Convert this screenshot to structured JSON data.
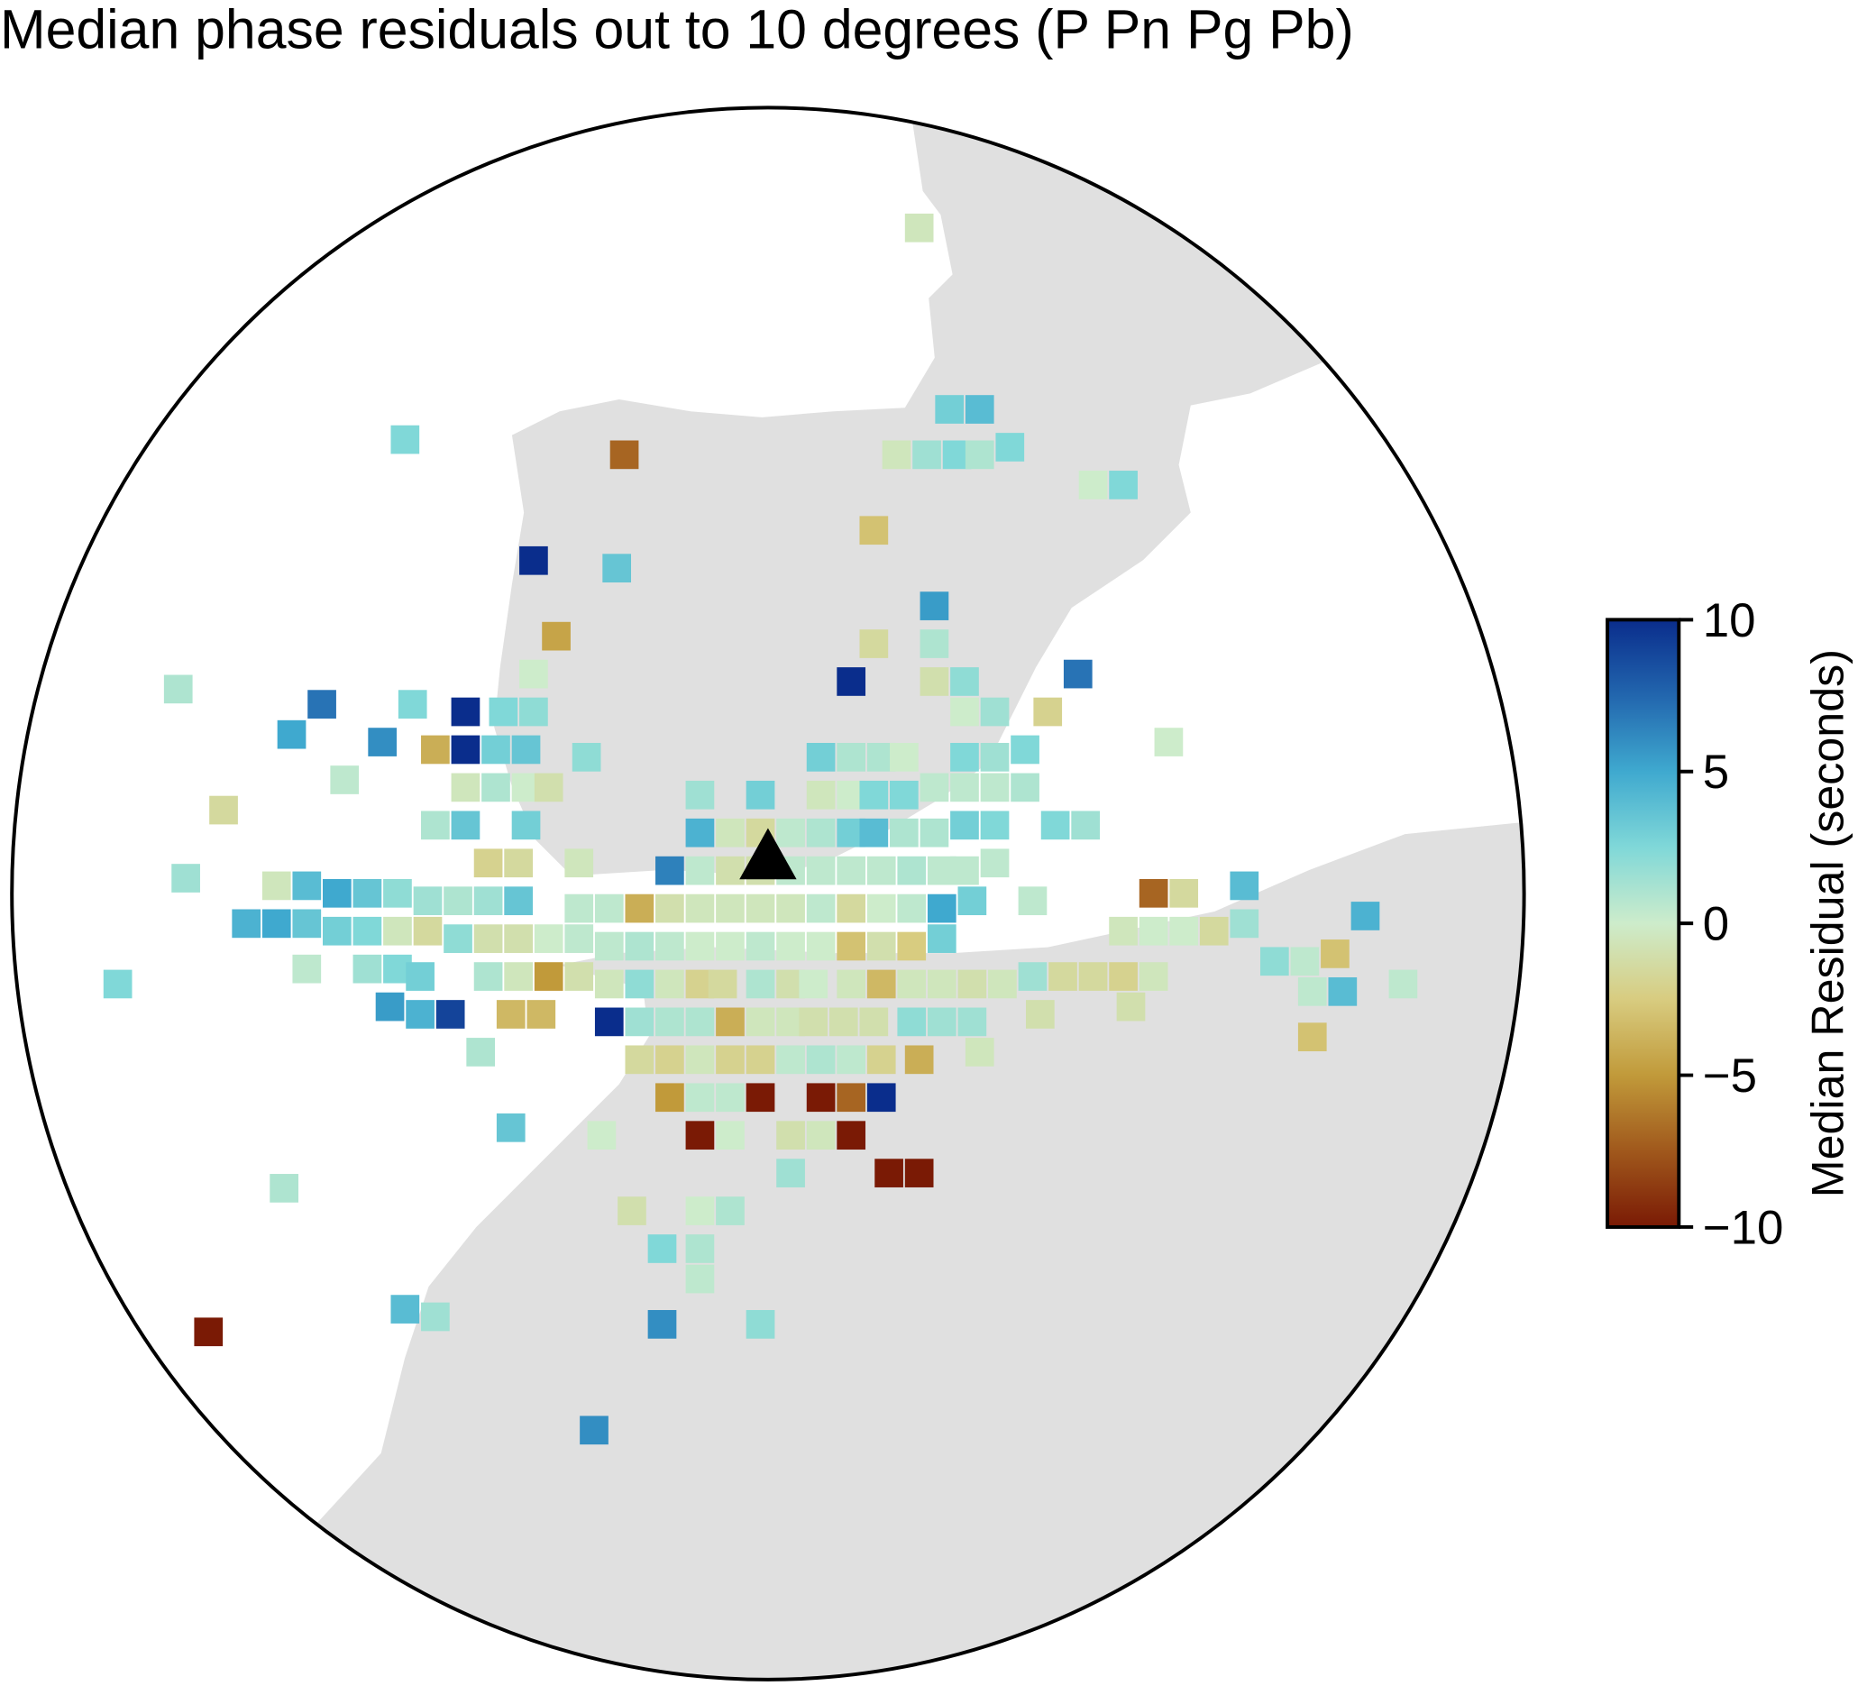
{
  "chart_data": {
    "type": "map",
    "title": "Median phase residuals out to 10 degrees (P Pn Pg Pb)",
    "x": [
      2.0,
      2.4,
      2.8,
      -1.9,
      -4.8,
      1.7,
      2.1,
      2.5,
      2.8,
      3.2,
      4.3,
      4.7,
      1.4,
      -3.1,
      -2.0,
      2.2,
      -2.8,
      1.4,
      2.2,
      4.1,
      1.1,
      -7.8,
      -3.1,
      2.2,
      2.6,
      -5.9,
      -4.7,
      -4.0,
      -3.5,
      -3.1,
      2.6,
      3.0,
      3.7,
      -6.3,
      -5.1,
      -4.4,
      -4.0,
      -3.6,
      -3.2,
      -2.4,
      0.7,
      1.1,
      1.5,
      1.8,
      2.6,
      3.0,
      3.4,
      5.3,
      -5.6,
      -4.0,
      -3.6,
      -3.2,
      -2.9,
      -0.9,
      -0.1,
      0.7,
      1.1,
      1.4,
      1.8,
      2.2,
      2.6,
      3.0,
      3.4,
      -7.2,
      -4.4,
      -4.0,
      -3.2,
      -0.9,
      -0.5,
      -0.1,
      0.3,
      0.7,
      1.1,
      1.4,
      1.8,
      2.2,
      2.6,
      3.0,
      3.8,
      4.2,
      -3.7,
      -3.3,
      -2.5,
      -1.3,
      -0.9,
      -0.5,
      -0.1,
      0.3,
      0.7,
      1.1,
      1.5,
      1.9,
      2.3,
      2.6,
      3.0,
      -7.7,
      -6.5,
      -6.1,
      -5.7,
      -5.3,
      -4.9,
      -4.5,
      -4.1,
      -3.7,
      -3.3,
      -2.5,
      -2.1,
      -1.7,
      -1.3,
      -0.9,
      -0.5,
      -0.1,
      0.3,
      0.7,
      1.1,
      1.5,
      1.9,
      2.3,
      2.7,
      3.5,
      5.1,
      5.5,
      6.3,
      -6.9,
      -6.5,
      -6.1,
      -5.7,
      -5.3,
      -4.9,
      -4.5,
      -4.1,
      -3.7,
      -3.3,
      -2.9,
      -2.5,
      -2.1,
      -1.7,
      -1.3,
      -0.9,
      -0.5,
      -0.1,
      0.3,
      0.7,
      1.1,
      1.5,
      1.9,
      2.3,
      4.7,
      5.1,
      5.5,
      5.9,
      6.3,
      7.9,
      -6.1,
      -5.3,
      -4.9,
      -4.6,
      -3.7,
      -3.3,
      -2.9,
      -2.5,
      -2.1,
      -1.7,
      -1.3,
      -0.9,
      -0.6,
      -0.1,
      0.3,
      0.6,
      1.1,
      1.5,
      1.9,
      2.3,
      2.7,
      3.1,
      3.5,
      3.9,
      4.3,
      4.7,
      5.1,
      6.7,
      7.1,
      7.5,
      -8.6,
      -5.0,
      -4.6,
      -4.2,
      -3.4,
      -3.0,
      -2.1,
      -1.7,
      -1.3,
      -0.9,
      -0.5,
      -0.1,
      0.3,
      0.6,
      1.0,
      1.4,
      1.9,
      2.3,
      2.7,
      3.6,
      4.8,
      7.2,
      7.6,
      8.4,
      -3.8,
      -1.7,
      -1.3,
      -0.9,
      -0.5,
      -0.1,
      0.3,
      0.7,
      1.1,
      1.5,
      2.0,
      2.8,
      7.2,
      -1.3,
      -0.9,
      -0.5,
      -0.1,
      0.7,
      1.1,
      1.5,
      -3.4,
      -2.2,
      -0.9,
      -0.5,
      0.3,
      0.7,
      1.1,
      0.3,
      1.6,
      2.0,
      -6.4,
      -1.8,
      -0.9,
      -0.5,
      -1.4,
      -0.9,
      -0.9,
      -4.8,
      -4.4,
      -1.4,
      -0.1,
      -7.4,
      -2.3
    ],
    "y": [
      8.3,
      5.9,
      5.9,
      5.3,
      5.5,
      5.3,
      5.3,
      5.3,
      5.3,
      5.4,
      4.9,
      4.9,
      4.3,
      3.9,
      3.8,
      3.3,
      2.9,
      2.8,
      2.8,
      2.4,
      2.3,
      2.2,
      2.4,
      2.3,
      2.3,
      2.0,
      2.0,
      1.9,
      1.9,
      1.9,
      1.9,
      1.9,
      1.9,
      1.6,
      1.5,
      1.4,
      1.4,
      1.4,
      1.4,
      1.3,
      1.3,
      1.3,
      1.3,
      1.3,
      1.3,
      1.3,
      1.4,
      1.5,
      1.0,
      0.9,
      0.9,
      0.9,
      0.9,
      0.8,
      0.8,
      0.8,
      0.8,
      0.8,
      0.8,
      0.9,
      0.9,
      0.9,
      0.9,
      0.6,
      0.4,
      0.4,
      0.4,
      0.3,
      0.3,
      0.3,
      0.3,
      0.3,
      0.3,
      0.3,
      0.3,
      0.3,
      0.4,
      0.4,
      0.4,
      0.4,
      -0.1,
      -0.1,
      -0.1,
      -0.2,
      -0.2,
      -0.2,
      -0.2,
      -0.2,
      -0.2,
      -0.2,
      -0.2,
      -0.2,
      -0.2,
      -0.2,
      -0.1,
      -0.3,
      -0.4,
      -0.4,
      -0.5,
      -0.5,
      -0.5,
      -0.6,
      -0.6,
      -0.6,
      -0.6,
      -0.7,
      -0.7,
      -0.7,
      -0.7,
      -0.7,
      -0.7,
      -0.7,
      -0.7,
      -0.7,
      -0.7,
      -0.7,
      -0.7,
      -0.7,
      -0.6,
      -0.6,
      -0.5,
      -0.5,
      -0.4,
      -0.9,
      -0.9,
      -0.9,
      -1.0,
      -1.0,
      -1.0,
      -1.0,
      -1.1,
      -1.1,
      -1.1,
      -1.1,
      -1.1,
      -1.2,
      -1.2,
      -1.2,
      -1.2,
      -1.2,
      -1.2,
      -1.2,
      -1.2,
      -1.2,
      -1.2,
      -1.2,
      -1.1,
      -1.0,
      -1.0,
      -1.0,
      -1.0,
      -0.9,
      -0.8,
      -1.5,
      -1.5,
      -1.5,
      -1.6,
      -1.6,
      -1.6,
      -1.6,
      -1.6,
      -1.7,
      -1.7,
      -1.7,
      -1.7,
      -1.7,
      -1.7,
      -1.7,
      -1.7,
      -1.7,
      -1.7,
      -1.7,
      -1.7,
      -1.7,
      -1.7,
      -1.6,
      -1.6,
      -1.6,
      -1.6,
      -1.6,
      -1.4,
      -1.4,
      -1.3,
      -1.7,
      -2.0,
      -2.1,
      -2.1,
      -2.1,
      -2.1,
      -2.2,
      -2.2,
      -2.2,
      -2.2,
      -2.2,
      -2.2,
      -2.2,
      -2.2,
      -2.2,
      -2.2,
      -2.2,
      -2.2,
      -2.2,
      -2.1,
      -2.0,
      -1.8,
      -1.8,
      -1.7,
      -2.6,
      -2.7,
      -2.7,
      -2.7,
      -2.7,
      -2.7,
      -2.7,
      -2.7,
      -2.7,
      -2.7,
      -2.7,
      -2.6,
      -2.4,
      -3.2,
      -3.2,
      -3.2,
      -3.2,
      -3.2,
      -3.2,
      -3.2,
      -3.6,
      -3.7,
      -3.7,
      -3.7,
      -3.7,
      -3.7,
      -3.7,
      -4.2,
      -4.2,
      -4.2,
      -4.4,
      -4.7,
      -4.7,
      -4.7,
      -5.2,
      -5.2,
      -5.6,
      -6.0,
      -6.1,
      -6.2,
      -6.2,
      -6.3,
      -7.6
    ],
    "values": [
      -0.5,
      3,
      4,
      -7,
      2.5,
      -0.5,
      1.5,
      2.5,
      1,
      2.5,
      0,
      2.5,
      -3,
      10,
      3.5,
      5.5,
      -4.5,
      -1.5,
      1,
      7,
      10,
      1,
      0,
      -1,
      2,
      7,
      2.5,
      10,
      2.5,
      2,
      0,
      1.5,
      -2,
      5,
      6,
      -4,
      10,
      3,
      3.5,
      2,
      3,
      1,
      1,
      0,
      2.5,
      1.5,
      2.5,
      0,
      0.5,
      -0.5,
      1,
      0,
      -1,
      1.5,
      3,
      -0.5,
      0,
      2.5,
      2.5,
      0.5,
      0.5,
      0.5,
      1,
      -1.5,
      1,
      3.5,
      3,
      4.5,
      -0.5,
      -1.5,
      0.5,
      1,
      3,
      4,
      1,
      1,
      3,
      2.5,
      2.5,
      1.5,
      -2,
      -1.5,
      -0.5,
      6.5,
      0.5,
      -1,
      -1,
      0.5,
      0.5,
      0.5,
      0.5,
      1,
      0.5,
      0.5,
      0.5,
      1.5,
      -0.5,
      4,
      5,
      3.5,
      2,
      1.5,
      1,
      1.5,
      3.5,
      0.5,
      0.5,
      -4,
      -1,
      -0.5,
      -0.5,
      -0.5,
      -0.5,
      0.5,
      -1.5,
      0,
      0.5,
      5,
      3,
      0.5,
      -7,
      -1.5,
      4,
      4.5,
      5,
      3.5,
      3,
      2.5,
      -0.5,
      -1.5,
      2,
      -1,
      -1,
      0,
      0.5,
      0.5,
      1,
      0.5,
      0,
      0,
      0.5,
      0,
      0,
      -3,
      -1,
      -2.5,
      3,
      -0.5,
      0,
      0,
      -1.5,
      1.5,
      4.5,
      0.5,
      1.5,
      2.5,
      3,
      1,
      -0.5,
      -5,
      -1,
      -0.5,
      2,
      -0.5,
      -2,
      -1.5,
      1,
      -1,
      0,
      -0.5,
      -3.5,
      -0.5,
      -0.5,
      -1,
      -0.5,
      1.5,
      -1.5,
      -1.5,
      -2,
      -0.5,
      2,
      0.5,
      -3,
      2.5,
      5.5,
      4.5,
      9,
      -3.5,
      -3.5,
      10,
      1.5,
      1,
      1,
      -4,
      -0.5,
      -0.5,
      -1,
      -1,
      -1,
      2,
      1.5,
      1.5,
      -1,
      -1,
      0.5,
      4,
      0.5,
      1,
      -1.5,
      -2,
      -0.5,
      -2,
      -2,
      0.5,
      1,
      0.5,
      -2,
      -4,
      -0.5,
      -3,
      -5,
      0.5,
      0.5,
      -10,
      -10,
      -7,
      10,
      3.5,
      0,
      -10,
      0,
      -1,
      -0.5,
      -10,
      1.5,
      -10,
      -10,
      1,
      -1,
      0,
      1,
      2.5,
      1,
      0.5,
      4,
      1.5,
      6,
      2,
      -10,
      6
    ],
    "colorbar": {
      "label": "Median Residual (seconds)",
      "lim": [
        -10,
        10
      ],
      "ticks": [
        {
          "value": -10,
          "label": "−10"
        },
        {
          "value": -5,
          "label": "−5"
        },
        0,
        5,
        10
      ],
      "colors": [
        "#7a1a05",
        "#a0581c",
        "#c19a3a",
        "#d8cc80",
        "#cdeccb",
        "#80d8d8",
        "#3fa9cf",
        "#2266ae",
        "#0a2d8c"
      ]
    }
  }
}
